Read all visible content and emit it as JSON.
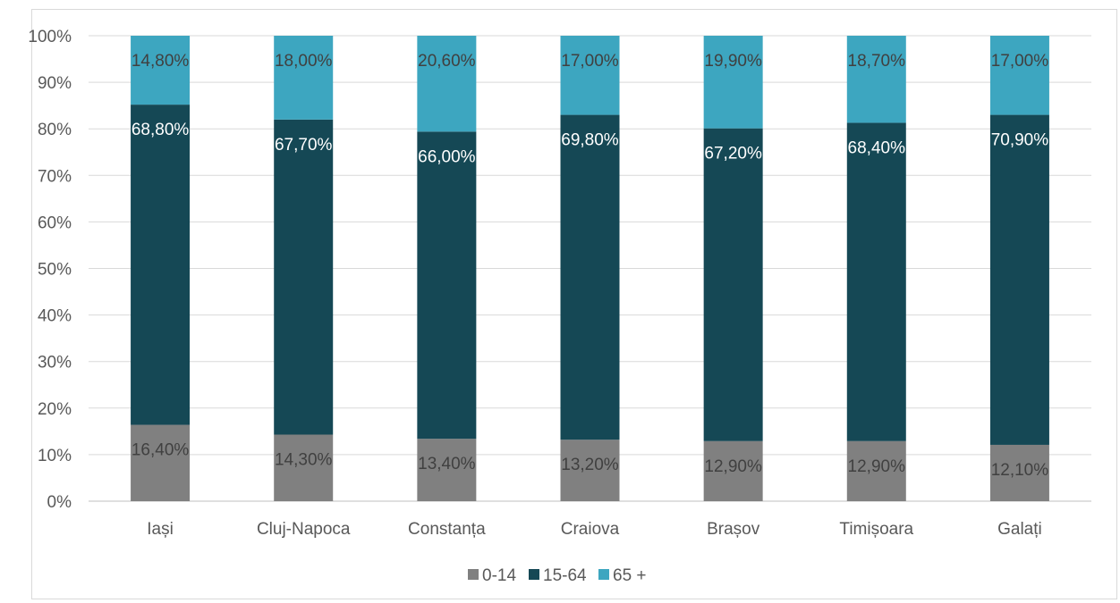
{
  "chart_data": {
    "type": "bar",
    "stacked": "percent",
    "categories": [
      "Iași",
      "Cluj-Napoca",
      "Constanța",
      "Craiova",
      "Brașov",
      "Timișoara",
      "Galați"
    ],
    "series": [
      {
        "name": "0-14",
        "color": "#808080",
        "label_color": "#404040",
        "values": [
          16.4,
          14.3,
          13.4,
          13.2,
          12.9,
          12.9,
          12.1
        ],
        "labels": [
          "16,40%",
          "14,30%",
          "13,40%",
          "13,20%",
          "12,90%",
          "12,90%",
          "12,10%"
        ]
      },
      {
        "name": "15-64",
        "color": "#154855",
        "label_color": "#ffffff",
        "values": [
          68.8,
          67.7,
          66.0,
          69.8,
          67.2,
          68.4,
          70.9
        ],
        "labels": [
          "68,80%",
          "67,70%",
          "66,00%",
          "69,80%",
          "67,20%",
          "68,40%",
          "70,90%"
        ]
      },
      {
        "name": "65 +",
        "color": "#3da6c0",
        "label_color": "#404040",
        "values": [
          14.8,
          18.0,
          20.6,
          17.0,
          19.9,
          18.7,
          17.0
        ],
        "labels": [
          "14,80%",
          "18,00%",
          "20,60%",
          "17,00%",
          "19,90%",
          "18,70%",
          "17,00%"
        ]
      }
    ],
    "y_ticks": [
      "0%",
      "10%",
      "20%",
      "30%",
      "40%",
      "50%",
      "60%",
      "70%",
      "80%",
      "90%",
      "100%"
    ],
    "ylim": [
      0,
      100
    ],
    "grid": true,
    "legend": "bottom"
  }
}
